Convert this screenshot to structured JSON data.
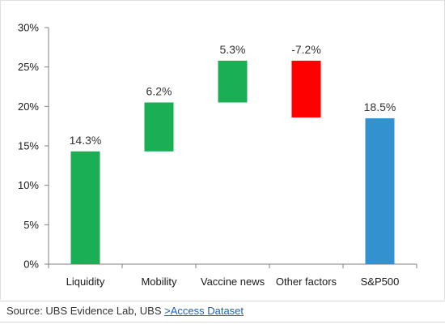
{
  "chart_data": {
    "type": "bar",
    "subtype": "waterfall",
    "categories": [
      "Liquidity",
      "Mobility",
      "Vaccine news",
      "Other factors",
      "S&P500"
    ],
    "bars": [
      {
        "category": "Liquidity",
        "start": 0,
        "end": 14.3,
        "label": "14.3%",
        "color": "#1aaf54"
      },
      {
        "category": "Mobility",
        "start": 14.3,
        "end": 20.5,
        "label": "6.2%",
        "color": "#1aaf54"
      },
      {
        "category": "Vaccine news",
        "start": 20.5,
        "end": 25.8,
        "label": "5.3%",
        "color": "#1aaf54"
      },
      {
        "category": "Other factors",
        "start": 25.8,
        "end": 18.6,
        "label": "-7.2%",
        "color": "#ff0000"
      },
      {
        "category": "S&P500",
        "start": 0,
        "end": 18.5,
        "label": "18.5%",
        "color": "#3491d0"
      }
    ],
    "yticks": [
      "0%",
      "5%",
      "10%",
      "15%",
      "20%",
      "25%",
      "30%"
    ],
    "ylim": [
      0,
      30
    ],
    "grid": false,
    "legend": "none"
  },
  "source": {
    "prefix": "Source:  UBS Evidence Lab, UBS ",
    "link_text": ">Access Dataset"
  }
}
